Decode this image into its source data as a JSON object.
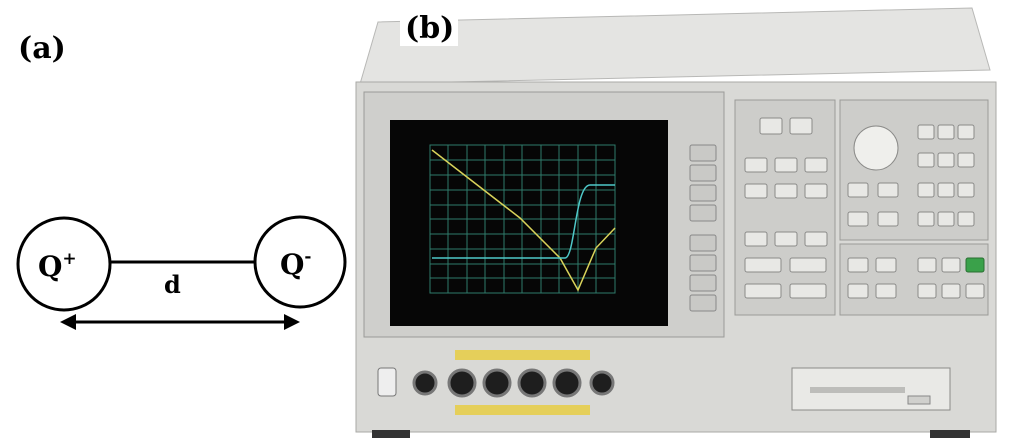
{
  "panel_a": {
    "label": "(a)",
    "left_charge": {
      "symbol": "Q",
      "sign": "+"
    },
    "right_charge": {
      "symbol": "Q",
      "sign": "-"
    },
    "distance": "d"
  },
  "panel_b": {
    "label": "(b)"
  }
}
